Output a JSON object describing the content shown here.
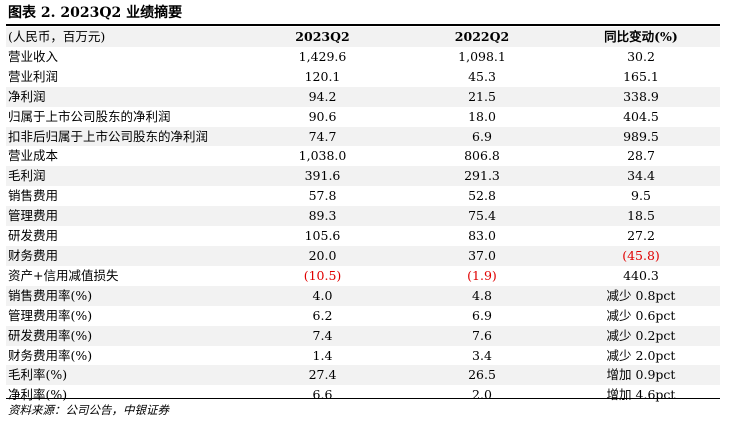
{
  "figure": {
    "title": "图表 2. 2023Q2 业绩摘要",
    "source": "资料来源：公司公告，中银证券"
  },
  "table": {
    "headers": [
      "(人民币，百万元)",
      "2023Q2",
      "2022Q2",
      "同比变动(%)"
    ],
    "rows": [
      {
        "label": "营业收入",
        "q2_2023": "1,429.6",
        "q2_2022": "1,098.1",
        "yoy": "30.2"
      },
      {
        "label": "营业利润",
        "q2_2023": "120.1",
        "q2_2022": "45.3",
        "yoy": "165.1"
      },
      {
        "label": "净利润",
        "q2_2023": "94.2",
        "q2_2022": "21.5",
        "yoy": "338.9"
      },
      {
        "label": "归属于上市公司股东的净利润",
        "q2_2023": "90.6",
        "q2_2022": "18.0",
        "yoy": "404.5"
      },
      {
        "label": "扣非后归属于上市公司股东的净利润",
        "q2_2023": "74.7",
        "q2_2022": "6.9",
        "yoy": "989.5"
      },
      {
        "label": "营业成本",
        "q2_2023": "1,038.0",
        "q2_2022": "806.8",
        "yoy": "28.7"
      },
      {
        "label": "毛利润",
        "q2_2023": "391.6",
        "q2_2022": "291.3",
        "yoy": "34.4"
      },
      {
        "label": "销售费用",
        "q2_2023": "57.8",
        "q2_2022": "52.8",
        "yoy": "9.5"
      },
      {
        "label": "管理费用",
        "q2_2023": "89.3",
        "q2_2022": "75.4",
        "yoy": "18.5"
      },
      {
        "label": "研发费用",
        "q2_2023": "105.6",
        "q2_2022": "83.0",
        "yoy": "27.2"
      },
      {
        "label": "财务费用",
        "q2_2023": "20.0",
        "q2_2022": "37.0",
        "yoy": "(45.8)"
      },
      {
        "label": "资产+信用减值损失",
        "q2_2023": "(10.5)",
        "q2_2022": "(1.9)",
        "yoy": "440.3"
      },
      {
        "label": "销售费用率(%)",
        "q2_2023": "4.0",
        "q2_2022": "4.8",
        "yoy": "减少 0.8pct"
      },
      {
        "label": "管理费用率(%)",
        "q2_2023": "6.2",
        "q2_2022": "6.9",
        "yoy": "减少 0.6pct"
      },
      {
        "label": "研发费用率(%)",
        "q2_2023": "7.4",
        "q2_2022": "7.6",
        "yoy": "减少 0.2pct"
      },
      {
        "label": "财务费用率(%)",
        "q2_2023": "1.4",
        "q2_2022": "3.4",
        "yoy": "减少 2.0pct"
      },
      {
        "label": "毛利率(%)",
        "q2_2023": "27.4",
        "q2_2022": "26.5",
        "yoy": "增加 0.9pct"
      },
      {
        "label": "净利率(%)",
        "q2_2023": "6.6",
        "q2_2022": "2.0",
        "yoy": "增加 4.6pct"
      }
    ]
  },
  "colors": {
    "negative_text": "#e00000",
    "shaded_row": "#f2f2f2"
  }
}
